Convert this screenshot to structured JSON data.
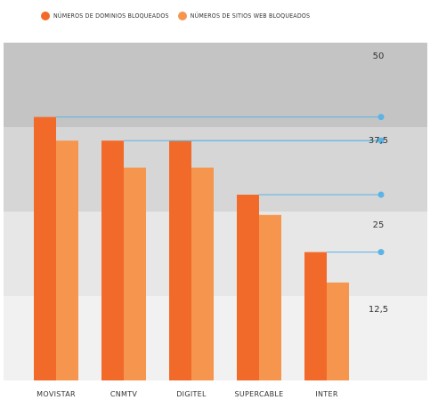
{
  "chart_data": {
    "type": "bar",
    "categories": [
      "MOVISTAR",
      "CNMTV",
      "DIGITEL",
      "SUPERCABLE",
      "INTER"
    ],
    "series": [
      {
        "name": "NÚMEROS DE DOMINIOS BLOQUEADOS",
        "values": [
          39,
          35.5,
          35.5,
          27.5,
          19
        ],
        "color": "#f26a2a"
      },
      {
        "name": "NÚMEROS DE SITIOS WEB BLOQUEADOS",
        "values": [
          35.5,
          31.5,
          31.5,
          24.5,
          14.5
        ],
        "color": "#f6964e"
      }
    ],
    "ylim": [
      0,
      50
    ],
    "yticks": [
      12.5,
      25,
      37.5,
      50
    ],
    "ytick_labels": [
      "12,5",
      "25",
      "37,5",
      "50"
    ],
    "legend_position": "top-left",
    "background_bands": [
      "#f1f1f1",
      "#e7e7e7",
      "#d6d6d6",
      "#c4c4c4"
    ],
    "leader_line_color": "#5ab4e6"
  }
}
